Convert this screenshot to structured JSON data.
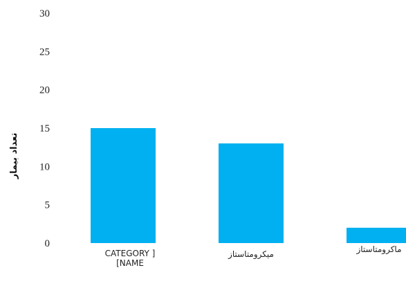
{
  "chart_data": {
    "type": "bar",
    "title": "",
    "xlabel": "",
    "ylabel": "تعداد بیمار",
    "categories": [
      [
        "CATEGORY ]",
        "[NAME"
      ],
      [
        "میکرومتاستاز"
      ],
      [
        "ماکرومتاستاز"
      ]
    ],
    "values": [
      15,
      13,
      2
    ],
    "ylim": [
      0,
      30
    ],
    "yticks": [
      0,
      5,
      10,
      15,
      20,
      25,
      30
    ],
    "bar_color": "#00B0F0",
    "grid": false,
    "legend": "none"
  }
}
